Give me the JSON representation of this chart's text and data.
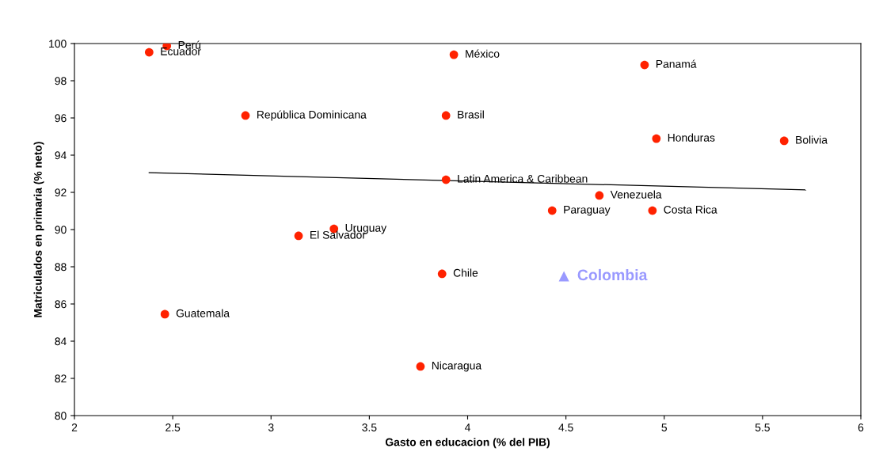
{
  "chart_data": {
    "type": "scatter",
    "xlabel": "Gasto en educacion (% del PIB)",
    "ylabel": "Matriculados en primaria (% neto)",
    "xlim": [
      2,
      6
    ],
    "xticks": [
      2,
      2.5,
      3,
      3.5,
      4,
      4.5,
      5,
      5.5,
      6
    ],
    "ylim": [
      80,
      100
    ],
    "yticks": [
      80,
      82,
      84,
      86,
      88,
      90,
      92,
      94,
      96,
      98,
      100
    ],
    "grid": false,
    "legend": false,
    "series": [
      {
        "marker": "circle",
        "color": "#ff2200",
        "x": [
          2.47,
          2.38,
          3.93,
          4.9,
          2.87,
          3.89,
          4.96,
          5.61,
          3.89,
          4.67,
          4.43,
          4.94,
          3.32,
          3.14,
          3.87,
          2.46,
          3.76
        ],
        "values": [
          99.87,
          99.53,
          99.4,
          98.85,
          96.13,
          96.13,
          94.89,
          94.77,
          92.68,
          91.83,
          91.02,
          91.02,
          90.04,
          89.66,
          87.62,
          85.45,
          82.64
        ]
      },
      {
        "marker": "triangle",
        "name": "Colombia",
        "color": "#9999ff",
        "x": [
          4.49
        ],
        "values": [
          87.49
        ]
      },
      {
        "type": "line",
        "marker": "none",
        "line_style": "solid",
        "color": "#000000",
        "x": [
          2.38,
          5.72
        ],
        "values": [
          93.06,
          92.13
        ]
      }
    ],
    "annotations": [
      {
        "text": "Perú",
        "x": 2.47,
        "y": 99.87
      },
      {
        "text": "Ecuador",
        "x": 2.38,
        "y": 99.53
      },
      {
        "text": "México",
        "x": 3.93,
        "y": 99.4
      },
      {
        "text": "Panamá",
        "x": 4.9,
        "y": 98.85
      },
      {
        "text": "República Dominicana",
        "x": 2.87,
        "y": 96.13
      },
      {
        "text": "Brasil",
        "x": 3.89,
        "y": 96.13
      },
      {
        "text": "Honduras",
        "x": 4.96,
        "y": 94.89
      },
      {
        "text": "Bolivia",
        "x": 5.61,
        "y": 94.77
      },
      {
        "text": "Latin America & Caribbean",
        "x": 3.89,
        "y": 92.68
      },
      {
        "text": "Venezuela",
        "x": 4.67,
        "y": 91.83
      },
      {
        "text": "Paraguay",
        "x": 4.43,
        "y": 91.02
      },
      {
        "text": "Costa Rica",
        "x": 4.94,
        "y": 91.02
      },
      {
        "text": "Uruguay",
        "x": 3.32,
        "y": 90.04
      },
      {
        "text": "El Salvador",
        "x": 3.14,
        "y": 89.66
      },
      {
        "text": "Chile",
        "x": 3.87,
        "y": 87.62
      },
      {
        "text": "Guatemala",
        "x": 2.46,
        "y": 85.45
      },
      {
        "text": "Nicaragua",
        "x": 3.76,
        "y": 82.64
      }
    ]
  }
}
